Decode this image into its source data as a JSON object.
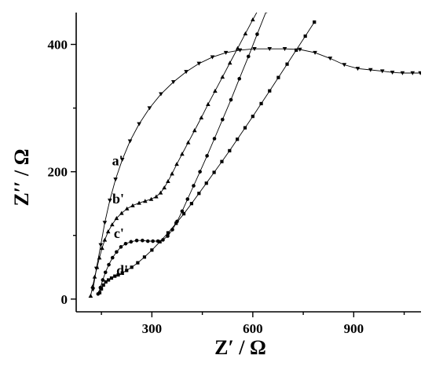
{
  "chart_data": {
    "type": "scatter",
    "title": "",
    "xlabel": "Z′ / Ω",
    "ylabel": "Z′′ / Ω",
    "xlim": [
      75,
      1100
    ],
    "ylim": [
      -20,
      450
    ],
    "xticks": [
      300,
      600,
      900
    ],
    "xtick_labels": [
      "300",
      "600",
      "900"
    ],
    "yticks": [
      0,
      200,
      400
    ],
    "ytick_labels": [
      "0",
      "200",
      "400"
    ],
    "grid": false,
    "legend": "none",
    "series": [
      {
        "name": "a'",
        "marker": "triangle-down",
        "x": [
          125,
          135,
          148,
          160,
          175,
          192,
          212,
          235,
          262,
          293,
          327,
          364,
          402,
          440,
          480,
          520,
          562,
          605,
          650,
          695,
          740,
          785,
          830,
          872,
          912,
          950,
          985,
          1015,
          1045,
          1075,
          1098
        ],
        "y": [
          15,
          48,
          85,
          120,
          155,
          188,
          219,
          248,
          275,
          300,
          322,
          341,
          357,
          370,
          380,
          387,
          391,
          393,
          393,
          393,
          392,
          387,
          378,
          368,
          362,
          360,
          358,
          356,
          355,
          355,
          355
        ]
      },
      {
        "name": "b'",
        "marker": "triangle-up",
        "x": [
          118,
          124,
          130,
          137,
          144,
          152,
          160,
          170,
          182,
          195,
          210,
          226,
          243,
          262,
          280,
          298,
          313,
          326,
          337,
          348,
          360,
          374,
          390,
          408,
          427,
          447,
          467,
          488,
          510,
          532,
          555,
          578,
          600,
          620,
          638
        ],
        "y": [
          5,
          20,
          35,
          50,
          65,
          80,
          93,
          106,
          117,
          127,
          135,
          142,
          147,
          151,
          154,
          157,
          161,
          167,
          175,
          185,
          197,
          212,
          228,
          246,
          265,
          285,
          306,
          327,
          349,
          371,
          394,
          417,
          439,
          458,
          474
        ]
      },
      {
        "name": "c'",
        "marker": "circle",
        "x": [
          140,
          147,
          154,
          162,
          172,
          183,
          195,
          208,
          222,
          238,
          255,
          272,
          288,
          303,
          318,
          333,
          347,
          361,
          375,
          390,
          406,
          424,
          443,
          464,
          486,
          510,
          535,
          560,
          587,
          613,
          640,
          666
        ],
        "y": [
          8,
          18,
          30,
          42,
          54,
          65,
          74,
          82,
          87,
          90,
          92,
          92,
          91,
          91,
          91,
          93,
          99,
          109,
          122,
          138,
          157,
          178,
          200,
          225,
          252,
          282,
          313,
          346,
          381,
          416,
          452,
          488
        ]
      },
      {
        "name": "d'",
        "marker": "square",
        "x": [
          145,
          150,
          156,
          163,
          171,
          180,
          190,
          200,
          212,
          225,
          240,
          258,
          278,
          300,
          324,
          348,
          372,
          395,
          418,
          440,
          462,
          485,
          508,
          531,
          554,
          577,
          600,
          625,
          650,
          676,
          702,
          729,
          756,
          783
        ],
        "y": [
          10,
          16,
          22,
          27,
          30,
          33,
          36,
          38,
          41,
          45,
          50,
          57,
          66,
          77,
          90,
          104,
          119,
          134,
          150,
          166,
          182,
          199,
          216,
          233,
          251,
          269,
          287,
          307,
          327,
          348,
          369,
          391,
          413,
          435
        ]
      }
    ],
    "annotations": [
      {
        "text": "a'",
        "x": 198,
        "y": 210
      },
      {
        "text": "b'",
        "x": 200,
        "y": 150
      },
      {
        "text": "c'",
        "x": 202,
        "y": 96
      },
      {
        "text": "d'",
        "x": 212,
        "y": 38
      }
    ]
  }
}
